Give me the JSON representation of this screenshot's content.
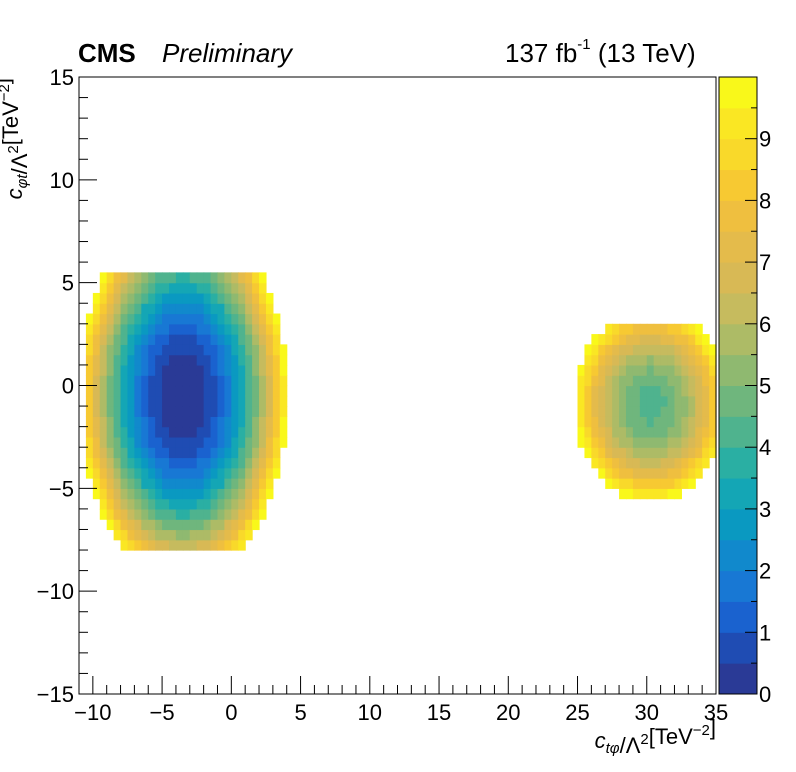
{
  "header": {
    "experiment": "CMS",
    "status": "Preliminary",
    "luminosity": "137 fb",
    "luminosity_exponent": "-1",
    "energy": "(13 TeV)"
  },
  "chart_data": {
    "type": "heatmap",
    "xlabel": "c_{tφ}/Λ²[TeV⁻²]",
    "ylabel": "c_{φt}/Λ²[TeV⁻²]",
    "xlim": [
      -11,
      35
    ],
    "ylim": [
      -15,
      15
    ],
    "x_ticks": [
      -10,
      -5,
      0,
      5,
      10,
      15,
      20,
      25,
      30,
      35
    ],
    "y_ticks": [
      -15,
      -10,
      -5,
      0,
      5,
      10,
      15
    ],
    "x_tick_labels": [
      "−10",
      "−5",
      "0",
      "5",
      "10",
      "15",
      "20",
      "25",
      "30",
      "35"
    ],
    "y_tick_labels": [
      "−15",
      "−10",
      "−5",
      "0",
      "5",
      "10",
      "15"
    ],
    "zlim": [
      0,
      10
    ],
    "z_ticks": [
      0,
      1,
      2,
      3,
      4,
      5,
      6,
      7,
      8,
      9
    ],
    "z_tick_labels": [
      "0",
      "1",
      "2",
      "3",
      "4",
      "5",
      "6",
      "7",
      "8",
      "9"
    ],
    "colormap": [
      "#2a3a96",
      "#1f4cb3",
      "#1a62cf",
      "#1878d4",
      "#1189cc",
      "#0a99c1",
      "#14a6b5",
      "#2aafa3",
      "#4fb38e",
      "#6fb67d",
      "#8fb970",
      "#adbb66",
      "#c6bb5e",
      "#d8b955",
      "#e4bb4b",
      "#efbf3f",
      "#f7c932",
      "#f9d92a",
      "#fae723",
      "#f9f81a"
    ],
    "minima": [
      {
        "x": -3.5,
        "y": -0.5,
        "value": 0,
        "sx": 3.6,
        "sy": 4.4,
        "extent_x": [
          -10.5,
          5.5
        ],
        "extent_y": [
          -8,
          5.3
        ]
      },
      {
        "x": 30.3,
        "y": -0.9,
        "value": 4.3,
        "sx": 3.5,
        "sy": 3.0,
        "extent_x": [
          23.5,
          35
        ],
        "extent_y": [
          -5.5,
          3.1
        ]
      }
    ],
    "max_shown": 10
  },
  "colors": {
    "axis": "#000000",
    "background": "#ffffff"
  }
}
